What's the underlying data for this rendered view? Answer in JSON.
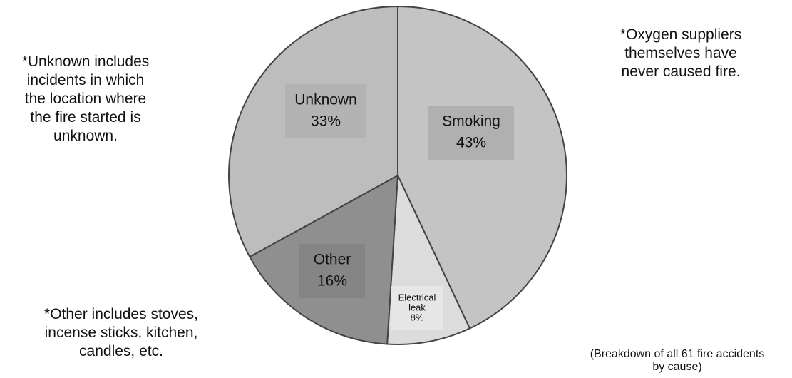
{
  "chart_data": {
    "type": "pie",
    "slices": [
      {
        "label": "Smoking",
        "percent_label": "43%",
        "value": 43,
        "color": "#c4c4c4"
      },
      {
        "label": "Electrical\nleak",
        "percent_label": "8%",
        "value": 8,
        "color": "#dcdcdc"
      },
      {
        "label": "Other",
        "percent_label": "16%",
        "value": 16,
        "color": "#8f8f8f"
      },
      {
        "label": "Unknown",
        "percent_label": "33%",
        "value": 33,
        "color": "#bdbdbd"
      }
    ]
  },
  "notes": {
    "unknown": "*Unknown includes\nincidents in which\nthe location where\nthe fire started is\nunknown.",
    "oxygen": "*Oxygen suppliers\nthemselves have\nnever caused fire.",
    "other": "*Other includes stoves,\nincense sticks, kitchen,\ncandles, etc.",
    "source": "(Breakdown of all 61 fire accidents\nby cause)"
  }
}
